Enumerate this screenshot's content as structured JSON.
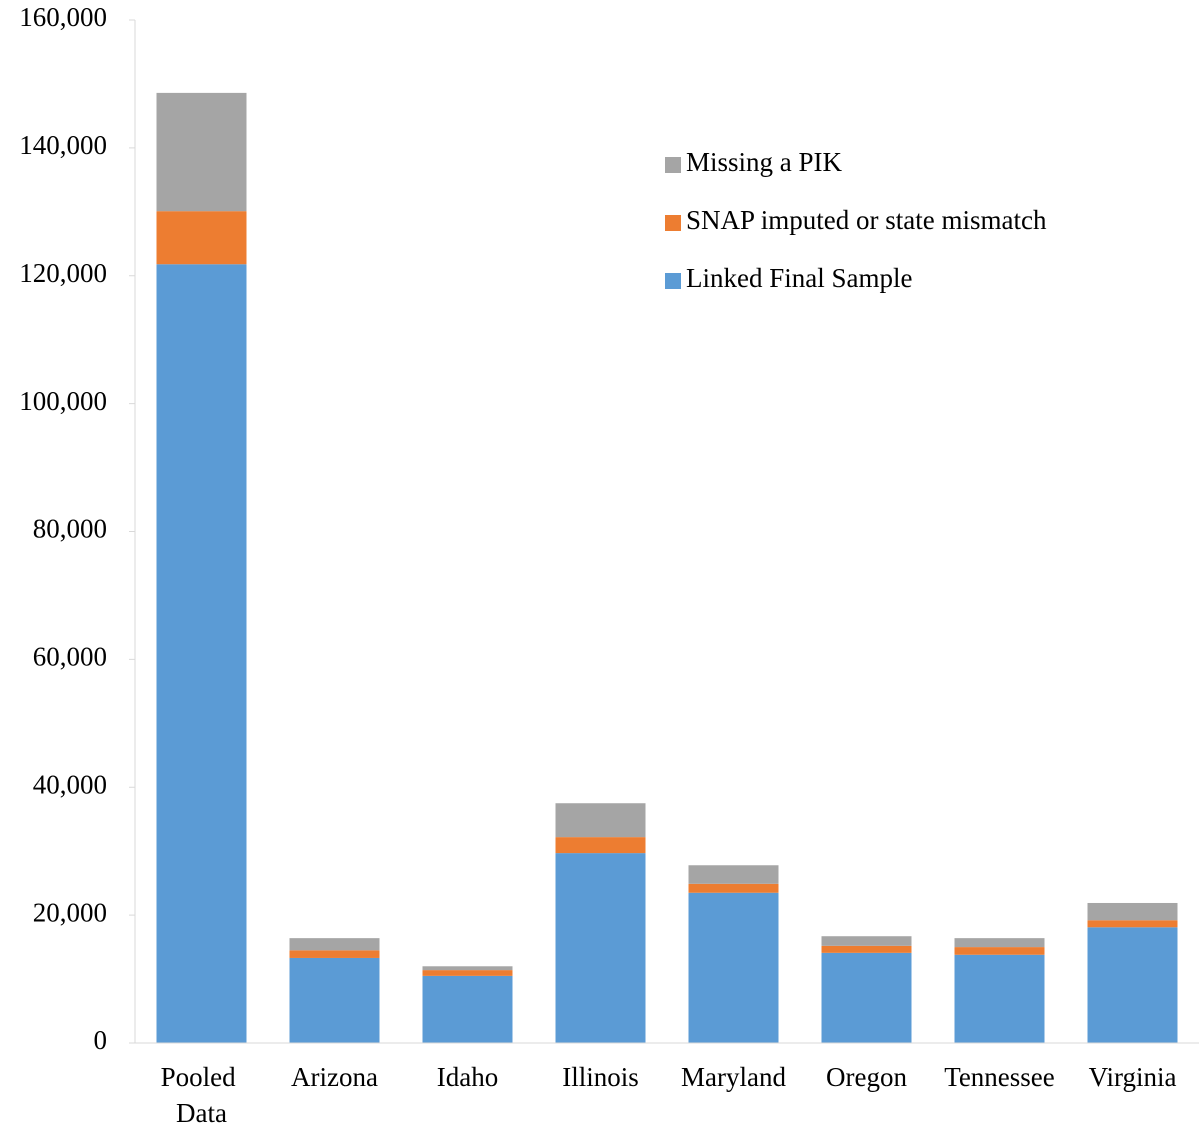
{
  "chart_data": {
    "type": "stacked_bar",
    "categories": [
      "Pooled Data",
      "Arizona",
      "Idaho",
      "Illinois",
      "Maryland",
      "Oregon",
      "Tennessee",
      "Virginia"
    ],
    "series": [
      {
        "name": "Linked Final Sample",
        "color": "#5b9bd5",
        "values": [
          121800,
          13300,
          10500,
          29700,
          23500,
          14100,
          13800,
          18100
        ]
      },
      {
        "name": "SNAP imputed or state mismatch",
        "color": "#ed7d31",
        "values": [
          8300,
          1200,
          900,
          2500,
          1400,
          1100,
          1200,
          1100
        ]
      },
      {
        "name": "Missing a PIK",
        "color": "#a5a5a5",
        "values": [
          18500,
          1900,
          600,
          5300,
          2900,
          1500,
          1400,
          2700
        ]
      }
    ],
    "ylim": [
      0,
      160000
    ],
    "yticks": [
      0,
      {
        "value": 20000,
        "label": "20,000"
      },
      {
        "value": 40000,
        "label": "40,000"
      },
      {
        "value": 60000,
        "label": "60,000"
      },
      {
        "value": 80000,
        "label": "80,000"
      },
      {
        "value": 100000,
        "label": "100,000"
      },
      {
        "value": 120000,
        "label": "120,000"
      },
      {
        "value": 140000,
        "label": "140,000"
      },
      {
        "value": 160000,
        "label": "160,000"
      }
    ],
    "grid": false,
    "legend": "upper right"
  }
}
